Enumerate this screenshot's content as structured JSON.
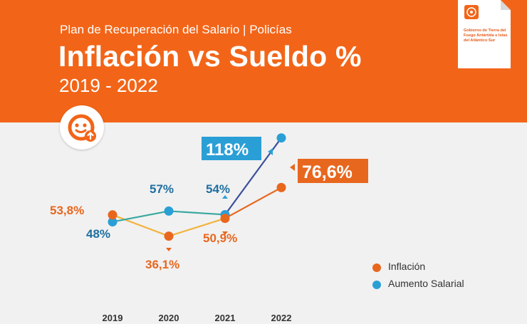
{
  "header": {
    "subtitle": "Plan de Recuperación del Salario | Policías",
    "title": "Inflación vs Sueldo %",
    "years": "2019 - 2022"
  },
  "gov_logo": {
    "text": "Gobierno de Tierra del Fuego Antártida e Islas del Atlántico Sur"
  },
  "colors": {
    "header_bg": "#f26518",
    "inflation": "#e8671e",
    "salary": "#2a9fd6",
    "inflation_label": "#e8671e",
    "salary_label": "#1f6fa0"
  },
  "chart_data": {
    "type": "line",
    "title": "Inflación vs Sueldo %",
    "categories": [
      "2019",
      "2020",
      "2021",
      "2022"
    ],
    "series": [
      {
        "name": "Inflación",
        "values": [
          53.8,
          36.1,
          50.9,
          76.6
        ],
        "labels": [
          "53,8%",
          "36,1%",
          "50,9%",
          "76,6%"
        ]
      },
      {
        "name": "Aumento Salarial",
        "values": [
          48,
          57,
          54,
          118
        ],
        "labels": [
          "48%",
          "57%",
          "54%",
          "118%"
        ]
      }
    ],
    "xlabel": "",
    "ylabel": "",
    "legend_position": "bottom-right",
    "grid": false
  }
}
